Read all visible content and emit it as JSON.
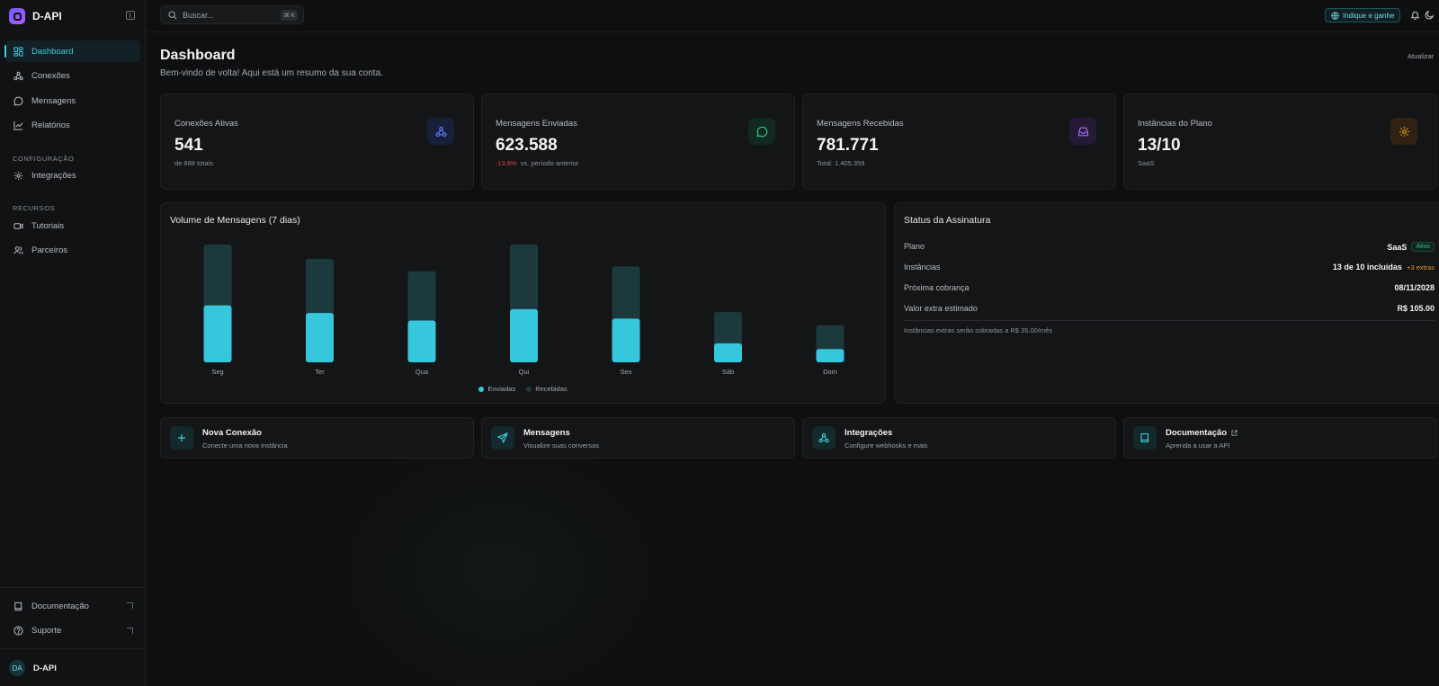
{
  "brand": {
    "name": "D-API"
  },
  "sidebar": {
    "main": [
      {
        "label": "Dashboard",
        "icon": "dashboard-icon",
        "active": true
      },
      {
        "label": "Conexões",
        "icon": "webhook-icon"
      },
      {
        "label": "Mensagens",
        "icon": "message-icon"
      },
      {
        "label": "Relatórios",
        "icon": "chart-line-icon"
      }
    ],
    "config_label": "CONFIGURAÇÃO",
    "config": [
      {
        "label": "Integrações",
        "icon": "gear-icon"
      }
    ],
    "resources_label": "RECURSOS",
    "resources": [
      {
        "label": "Tutoriais",
        "icon": "video-icon"
      },
      {
        "label": "Parceiros",
        "icon": "users-icon"
      }
    ],
    "bottom": [
      {
        "label": "Documentação",
        "icon": "book-icon"
      },
      {
        "label": "Suporte",
        "icon": "help-icon"
      }
    ],
    "user": {
      "initials": "DA",
      "name": "D-API"
    }
  },
  "topbar": {
    "search_placeholder": "Buscar...",
    "search_shortcut": "⌘ K",
    "refer_label": "Indique e ganhe"
  },
  "header": {
    "title": "Dashboard",
    "subtitle": "Bem-vindo de volta! Aqui está um resumo da sua conta.",
    "refresh": "Atualizar"
  },
  "stats": [
    {
      "label": "Conexões Ativas",
      "value": "541",
      "foot": "de 888 totais",
      "icon": "webhook-icon",
      "color": "#5b7cf5",
      "bg": "#17203a"
    },
    {
      "label": "Mensagens Enviadas",
      "value": "623.588",
      "foot_change": "-13.8%",
      "foot": "vs. período anterior",
      "icon": "message-icon",
      "color": "#34c38f",
      "bg": "#12291f"
    },
    {
      "label": "Mensagens Recebidas",
      "value": "781.771",
      "foot": "Total: 1.405.359",
      "icon": "inbox-icon",
      "color": "#a36cf0",
      "bg": "#251a36"
    },
    {
      "label": "Instâncias do Plano",
      "value": "13/10",
      "foot": "SaaS",
      "icon": "gear-icon",
      "color": "#e39a2b",
      "bg": "#2f2212"
    }
  ],
  "chart_data": {
    "type": "bar",
    "title": "Volume de Mensagens (7 dias)",
    "categories": [
      "Seg",
      "Ter",
      "Qua",
      "Qui",
      "Sex",
      "Sáb",
      "Dom"
    ],
    "series": [
      {
        "name": "Enviadas",
        "color": "#36c7dd",
        "values": [
          60,
          52,
          44,
          56,
          46,
          20,
          14
        ]
      },
      {
        "name": "Recebidas",
        "color": "#1c3a3d",
        "values": [
          64,
          57,
          52,
          68,
          55,
          33,
          25
        ]
      }
    ],
    "stacked": true,
    "ylim": [
      0,
      125
    ],
    "grid": false,
    "legend": "bottom"
  },
  "subscription": {
    "title": "Status da Assinatura",
    "rows": [
      {
        "label": "Plano",
        "value": "SaaS",
        "badge": "Ativo"
      },
      {
        "label": "Instâncias",
        "value": "13 de 10 incluídas",
        "extra": "+3 extras"
      },
      {
        "label": "Próxima cobrança",
        "value": "08/11/2028"
      },
      {
        "label": "Valor extra estimado",
        "value": "R$ 105.00"
      }
    ],
    "note": "Instâncias extras serão cobradas a R$ 35.00/mês"
  },
  "actions": [
    {
      "title": "Nova Conexão",
      "sub": "Conecte uma nova instância",
      "icon": "plus-icon"
    },
    {
      "title": "Mensagens",
      "sub": "Visualize suas conversas",
      "icon": "send-icon"
    },
    {
      "title": "Integrações",
      "sub": "Configure webhooks e mais",
      "icon": "webhook-icon"
    },
    {
      "title": "Documentação",
      "sub": "Aprenda a usar a API",
      "icon": "book-icon",
      "external": true
    }
  ]
}
